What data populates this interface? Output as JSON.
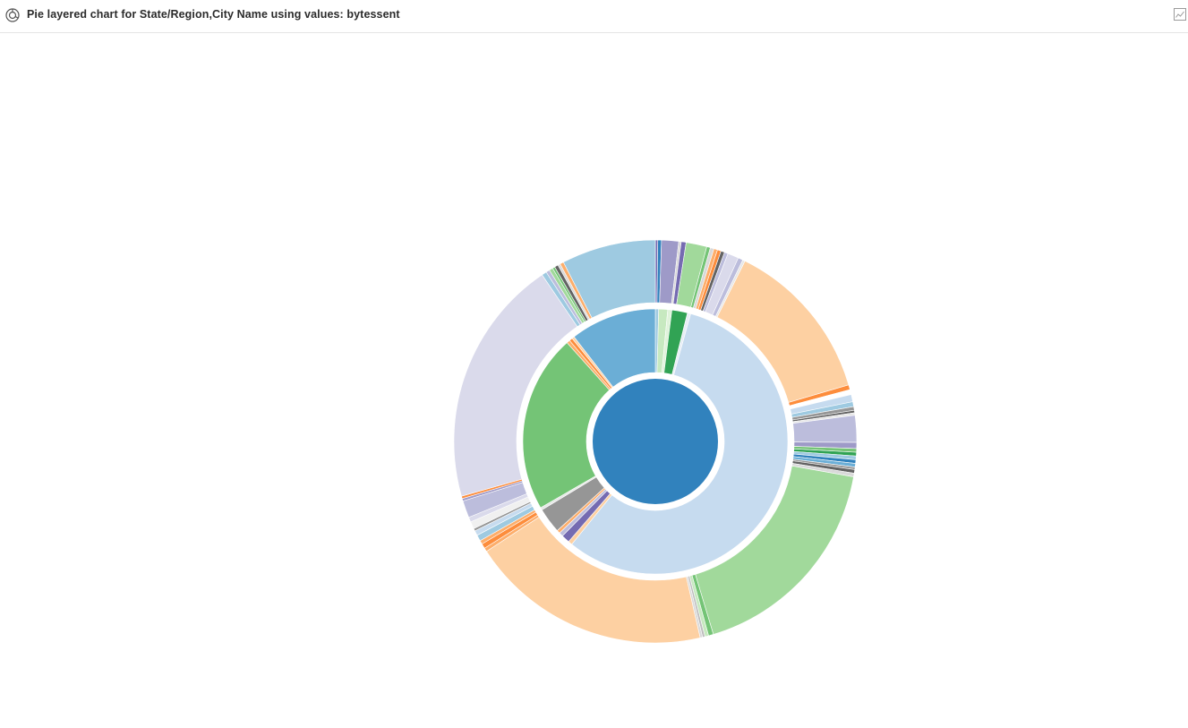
{
  "header": {
    "title": "Pie layered chart for State/Region,City Name using values: bytessent",
    "chart_type_icon": "pie-chart-icon",
    "options_icon": "chart-options-icon"
  },
  "chart_data": {
    "type": "pie",
    "subtype": "layered",
    "title": "Pie layered chart for State/Region,City Name using values: bytessent",
    "value_field": "bytessent",
    "levels": [
      "State/Region",
      "City Name"
    ],
    "legend": "none",
    "rings": [
      {
        "level": "root",
        "slices": [
          {
            "value": 100,
            "color": "#3182bd"
          }
        ]
      },
      {
        "level": "State/Region",
        "slices": [
          {
            "value": 0.4,
            "color": "#9ecae1"
          },
          {
            "value": 1.1,
            "color": "#c7e9c0"
          },
          {
            "value": 0.5,
            "color": "#e0f3db"
          },
          {
            "value": 1.9,
            "color": "#31a354"
          },
          {
            "value": 0.4,
            "color": "#e8eef6"
          },
          {
            "value": 56.5,
            "color": "#c6dbef"
          },
          {
            "value": 0.5,
            "color": "#fdd0a2"
          },
          {
            "value": 1.0,
            "color": "#756bb1"
          },
          {
            "value": 0.5,
            "color": "#bcbddc"
          },
          {
            "value": 0.4,
            "color": "#fdae6b"
          },
          {
            "value": 3.1,
            "color": "#969696"
          },
          {
            "value": 0.3,
            "color": "#e6e6e6"
          },
          {
            "value": 21.7,
            "color": "#74c476"
          },
          {
            "value": 0.4,
            "color": "#fdae6b"
          },
          {
            "value": 0.4,
            "color": "#fd8d3c"
          },
          {
            "value": 0.3,
            "color": "#fdd0a2"
          },
          {
            "value": 10.5,
            "color": "#6baed6"
          }
        ]
      },
      {
        "level": "City Name",
        "slices": [
          {
            "value": 0.2,
            "color": "#756bb1"
          },
          {
            "value": 0.3,
            "color": "#3182bd"
          },
          {
            "value": 1.4,
            "color": "#9e9ac8"
          },
          {
            "value": 0.2,
            "color": "#d9d9d9"
          },
          {
            "value": 0.4,
            "color": "#756bb1"
          },
          {
            "value": 1.7,
            "color": "#a1d99b"
          },
          {
            "value": 0.3,
            "color": "#74c476"
          },
          {
            "value": 0.3,
            "color": "#d9d9d9"
          },
          {
            "value": 0.3,
            "color": "#fdae6b"
          },
          {
            "value": 0.3,
            "color": "#fd8d3c"
          },
          {
            "value": 0.3,
            "color": "#636363"
          },
          {
            "value": 0.3,
            "color": "#bcbddc"
          },
          {
            "value": 0.9,
            "color": "#dadaeb"
          },
          {
            "value": 0.4,
            "color": "#bcbddc"
          },
          {
            "value": 0.2,
            "color": "#e6e6e6"
          },
          {
            "value": 13.4,
            "color": "#fdd0a2"
          },
          {
            "value": 0.4,
            "color": "#fd8d3c"
          },
          {
            "value": 0.4,
            "color": "#ffffff"
          },
          {
            "value": 0.6,
            "color": "#c6dbef"
          },
          {
            "value": 0.4,
            "color": "#9ecae1"
          },
          {
            "value": 0.3,
            "color": "#969696"
          },
          {
            "value": 0.2,
            "color": "#636363"
          },
          {
            "value": 0.2,
            "color": "#e6e6e6"
          },
          {
            "value": 2.2,
            "color": "#bcbddc"
          },
          {
            "value": 0.5,
            "color": "#9e9ac8"
          },
          {
            "value": 0.3,
            "color": "#74c476"
          },
          {
            "value": 0.3,
            "color": "#31a354"
          },
          {
            "value": 0.3,
            "color": "#9ecae1"
          },
          {
            "value": 0.3,
            "color": "#3182bd"
          },
          {
            "value": 0.3,
            "color": "#6baed6"
          },
          {
            "value": 0.2,
            "color": "#969696"
          },
          {
            "value": 0.3,
            "color": "#636363"
          },
          {
            "value": 0.3,
            "color": "#d9d9d9"
          },
          {
            "value": 17.9,
            "color": "#a1d99b"
          },
          {
            "value": 0.4,
            "color": "#74c476"
          },
          {
            "value": 0.3,
            "color": "#c7e9c0"
          },
          {
            "value": 0.2,
            "color": "#bdbdbd"
          },
          {
            "value": 0.2,
            "color": "#d9d9d9"
          },
          {
            "value": 19.8,
            "color": "#fdd0a2"
          },
          {
            "value": 0.3,
            "color": "#fdae6b"
          },
          {
            "value": 0.4,
            "color": "#fd8d3c"
          },
          {
            "value": 0.3,
            "color": "#fdae6b"
          },
          {
            "value": 0.5,
            "color": "#9ecae1"
          },
          {
            "value": 0.4,
            "color": "#c6dbef"
          },
          {
            "value": 0.2,
            "color": "#969696"
          },
          {
            "value": 0.6,
            "color": "#f0f0f0"
          },
          {
            "value": 0.4,
            "color": "#dadaeb"
          },
          {
            "value": 1.4,
            "color": "#bcbddc"
          },
          {
            "value": 0.2,
            "color": "#9e9ac8"
          },
          {
            "value": 0.2,
            "color": "#fd8d3c"
          },
          {
            "value": 20.3,
            "color": "#dadaeb"
          },
          {
            "value": 0.4,
            "color": "#9ecae1"
          },
          {
            "value": 0.3,
            "color": "#bcbddc"
          },
          {
            "value": 0.3,
            "color": "#a1d99b"
          },
          {
            "value": 0.2,
            "color": "#74c476"
          },
          {
            "value": 0.3,
            "color": "#636363"
          },
          {
            "value": 0.2,
            "color": "#d9d9d9"
          },
          {
            "value": 0.3,
            "color": "#fdae6b"
          },
          {
            "value": 7.7,
            "color": "#9ecae1"
          }
        ]
      }
    ]
  }
}
